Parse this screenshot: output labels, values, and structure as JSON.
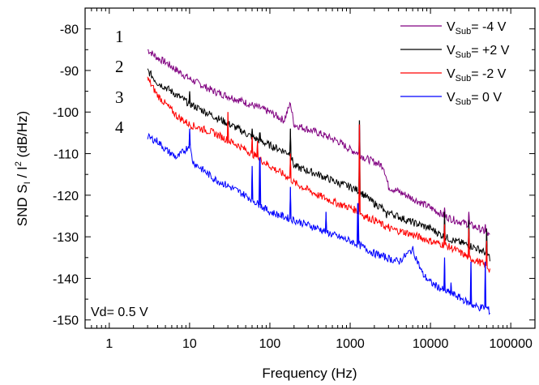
{
  "chart_data": {
    "type": "line",
    "xscale": "log",
    "xlim": [
      0.5,
      200000
    ],
    "ylim": [
      -152,
      -75
    ],
    "xlabel": "Frequency    (Hz)",
    "ylabel_parts": [
      "SND   S",
      "I",
      " / I",
      "2",
      "   (dB/Hz)"
    ],
    "x_ticks": [
      1,
      10,
      100,
      1000,
      10000,
      100000
    ],
    "x_tick_labels": [
      "1",
      "10",
      "100",
      "1000",
      "10000",
      "100000"
    ],
    "y_ticks": [
      -150,
      -140,
      -130,
      -120,
      -110,
      -100,
      -90,
      -80
    ],
    "y_tick_labels": [
      "-150",
      "-140",
      "-130",
      "-120",
      "-110",
      "-100",
      "-90",
      "-80"
    ],
    "grid": false,
    "legend_position": "top-right",
    "annotation": "Vd= 0.5 V",
    "curve_numbers": [
      "1",
      "2",
      "3",
      "4"
    ],
    "series": [
      {
        "legend_main": "V",
        "legend_sub": "Sub",
        "legend_value": "= -4 V",
        "color": "#800080",
        "x": [
          3,
          4,
          5,
          7,
          10,
          20,
          40,
          100,
          150,
          180,
          200,
          400,
          700,
          1000,
          1300,
          1500,
          2000,
          2600,
          3000,
          5000,
          10000,
          15000,
          20000,
          30000,
          40000,
          50000,
          55000
        ],
        "y": [
          -85,
          -87,
          -88,
          -90,
          -92,
          -95,
          -97,
          -100,
          -102,
          -98,
          -103,
          -105,
          -107,
          -109,
          -110,
          -111,
          -112,
          -113,
          -118,
          -120,
          -123,
          -125,
          -126,
          -127,
          -128,
          -129,
          -130
        ],
        "peaks": [
          [
            180,
            -98
          ],
          [
            1300,
            -103
          ],
          [
            15000,
            -123
          ],
          [
            30000,
            -124
          ],
          [
            48000,
            -127
          ]
        ]
      },
      {
        "legend_main": "V",
        "legend_sub": "Sub",
        "legend_value": "= +2 V",
        "color": "#000000",
        "x": [
          3,
          4,
          5,
          7,
          10,
          20,
          40,
          60,
          100,
          180,
          200,
          400,
          700,
          1000,
          1300,
          1500,
          2000,
          2500,
          2800,
          3000,
          5000,
          10000,
          15000,
          20000,
          30000,
          40000,
          50000,
          55000
        ],
        "y": [
          -90,
          -93,
          -94,
          -96,
          -98,
          -101,
          -104,
          -106,
          -108,
          -110,
          -113,
          -115,
          -117,
          -118,
          -119,
          -120,
          -122,
          -123,
          -125,
          -124,
          -126,
          -128,
          -130,
          -131,
          -132,
          -133,
          -134,
          -135
        ],
        "peaks": [
          [
            10,
            -95
          ],
          [
            60,
            -104
          ],
          [
            75,
            -105
          ],
          [
            180,
            -104
          ],
          [
            1300,
            -102
          ],
          [
            2800,
            -125
          ],
          [
            15000,
            -124
          ],
          [
            30000,
            -126
          ],
          [
            50000,
            -128
          ]
        ]
      },
      {
        "legend_main": "V",
        "legend_sub": "Sub",
        "legend_value": "= -2 V",
        "color": "#ff0000",
        "x": [
          3,
          4,
          5,
          7,
          10,
          20,
          40,
          60,
          100,
          180,
          200,
          400,
          700,
          1000,
          1300,
          1500,
          2000,
          3000,
          5000,
          10000,
          15000,
          20000,
          30000,
          40000,
          50000,
          55000
        ],
        "y": [
          -92,
          -96,
          -98,
          -101,
          -103,
          -105,
          -108,
          -110,
          -113,
          -116,
          -117,
          -120,
          -122,
          -123,
          -124,
          -125,
          -126,
          -128,
          -129,
          -131,
          -132,
          -133,
          -135,
          -136,
          -137,
          -138
        ],
        "peaks": [
          [
            30,
            -100
          ],
          [
            60,
            -106
          ],
          [
            70,
            -107
          ],
          [
            180,
            -110
          ],
          [
            1300,
            -103
          ],
          [
            3000,
            -127
          ],
          [
            15000,
            -127
          ],
          [
            30000,
            -128
          ],
          [
            50000,
            -131
          ]
        ]
      },
      {
        "legend_main": "V",
        "legend_sub": "Sub",
        "legend_value": "=  0 V",
        "color": "#0000ff",
        "x": [
          3,
          4,
          5,
          7,
          10,
          11,
          20,
          40,
          60,
          70,
          100,
          200,
          400,
          700,
          1000,
          1300,
          2000,
          4000,
          6000,
          8000,
          10000,
          15000,
          20000,
          25000,
          30000,
          40000,
          50000,
          55000
        ],
        "y": [
          -106,
          -107,
          -109,
          -111,
          -108,
          -112,
          -116,
          -119,
          -121,
          -122,
          -124,
          -126,
          -128,
          -130,
          -131,
          -132,
          -134,
          -136,
          -133,
          -139,
          -141,
          -143,
          -144,
          -145,
          -146,
          -147,
          -147,
          -148
        ],
        "peaks": [
          [
            10,
            -104
          ],
          [
            60,
            -113
          ],
          [
            75,
            -111
          ],
          [
            180,
            -118
          ],
          [
            500,
            -124
          ],
          [
            1250,
            -122
          ],
          [
            15000,
            -135
          ],
          [
            18000,
            -141
          ],
          [
            32000,
            -136
          ],
          [
            48000,
            -136
          ]
        ]
      }
    ]
  }
}
